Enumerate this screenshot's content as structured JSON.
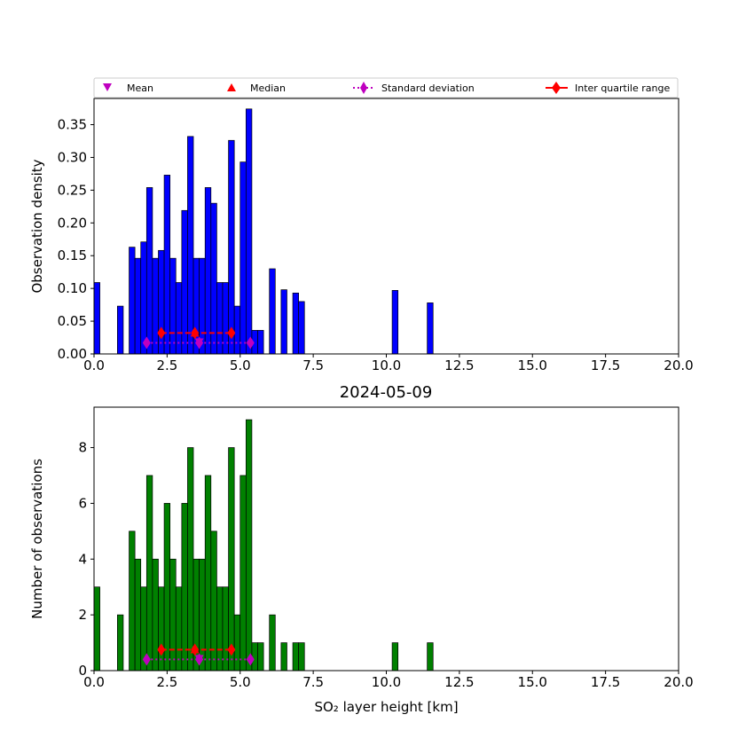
{
  "chart_data": [
    {
      "type": "bar",
      "title": "",
      "xlabel": "",
      "ylabel": "Observation density",
      "xlim": [
        0,
        20
      ],
      "ylim": [
        0,
        0.39
      ],
      "x_ticks": [
        "0.0",
        "2.5",
        "5.0",
        "7.5",
        "10.0",
        "12.5",
        "15.0",
        "17.5",
        "20.0"
      ],
      "y_ticks": [
        "0.00",
        "0.05",
        "0.10",
        "0.15",
        "0.20",
        "0.25",
        "0.30",
        "0.35"
      ],
      "bin_width": 0.2,
      "bar_color": "#0000ff",
      "legend": {
        "placement": "top, outside axes",
        "entries": [
          "Mean",
          "Median",
          "Standard deviation",
          "Inter quartile range"
        ]
      },
      "bins": [
        {
          "x": 0.0,
          "value": 0.109
        },
        {
          "x": 0.8,
          "value": 0.073
        },
        {
          "x": 1.2,
          "value": 0.163
        },
        {
          "x": 1.4,
          "value": 0.146
        },
        {
          "x": 1.6,
          "value": 0.171
        },
        {
          "x": 1.8,
          "value": 0.254
        },
        {
          "x": 2.0,
          "value": 0.146
        },
        {
          "x": 2.2,
          "value": 0.158
        },
        {
          "x": 2.4,
          "value": 0.273
        },
        {
          "x": 2.6,
          "value": 0.146
        },
        {
          "x": 2.8,
          "value": 0.109
        },
        {
          "x": 3.0,
          "value": 0.219
        },
        {
          "x": 3.2,
          "value": 0.332
        },
        {
          "x": 3.4,
          "value": 0.146
        },
        {
          "x": 3.6,
          "value": 0.146
        },
        {
          "x": 3.8,
          "value": 0.254
        },
        {
          "x": 4.0,
          "value": 0.23
        },
        {
          "x": 4.2,
          "value": 0.109
        },
        {
          "x": 4.4,
          "value": 0.109
        },
        {
          "x": 4.6,
          "value": 0.326
        },
        {
          "x": 4.8,
          "value": 0.073
        },
        {
          "x": 5.0,
          "value": 0.293
        },
        {
          "x": 5.2,
          "value": 0.374
        },
        {
          "x": 5.4,
          "value": 0.036
        },
        {
          "x": 5.6,
          "value": 0.036
        },
        {
          "x": 6.0,
          "value": 0.13
        },
        {
          "x": 6.4,
          "value": 0.098
        },
        {
          "x": 6.8,
          "value": 0.093
        },
        {
          "x": 7.0,
          "value": 0.08
        },
        {
          "x": 10.2,
          "value": 0.097
        },
        {
          "x": 11.4,
          "value": 0.078
        }
      ],
      "markers": {
        "median_iqr": {
          "y": 0.032,
          "q1": 2.3,
          "median": 3.45,
          "q3": 4.7
        },
        "mean_std": {
          "y": 0.017,
          "low": 1.8,
          "mean": 3.6,
          "high": 5.35
        }
      }
    },
    {
      "type": "bar",
      "title": "2024-05-09",
      "xlabel": "SO₂ layer height [km]",
      "ylabel": "Number of observations",
      "xlim": [
        0,
        20
      ],
      "ylim": [
        0,
        9.45
      ],
      "x_ticks": [
        "0.0",
        "2.5",
        "5.0",
        "7.5",
        "10.0",
        "12.5",
        "15.0",
        "17.5",
        "20.0"
      ],
      "y_ticks": [
        "0",
        "2",
        "4",
        "6",
        "8"
      ],
      "bin_width": 0.2,
      "bar_color": "#008000",
      "bins": [
        {
          "x": 0.0,
          "value": 3
        },
        {
          "x": 0.8,
          "value": 2
        },
        {
          "x": 1.2,
          "value": 5
        },
        {
          "x": 1.4,
          "value": 4
        },
        {
          "x": 1.6,
          "value": 3
        },
        {
          "x": 1.8,
          "value": 7
        },
        {
          "x": 2.0,
          "value": 4
        },
        {
          "x": 2.2,
          "value": 3
        },
        {
          "x": 2.4,
          "value": 6
        },
        {
          "x": 2.6,
          "value": 4
        },
        {
          "x": 2.8,
          "value": 3
        },
        {
          "x": 3.0,
          "value": 6
        },
        {
          "x": 3.2,
          "value": 8
        },
        {
          "x": 3.4,
          "value": 4
        },
        {
          "x": 3.6,
          "value": 4
        },
        {
          "x": 3.8,
          "value": 7
        },
        {
          "x": 4.0,
          "value": 5
        },
        {
          "x": 4.2,
          "value": 3
        },
        {
          "x": 4.4,
          "value": 3
        },
        {
          "x": 4.6,
          "value": 8
        },
        {
          "x": 4.8,
          "value": 2
        },
        {
          "x": 5.0,
          "value": 7
        },
        {
          "x": 5.2,
          "value": 9
        },
        {
          "x": 5.4,
          "value": 1
        },
        {
          "x": 5.6,
          "value": 1
        },
        {
          "x": 6.0,
          "value": 2
        },
        {
          "x": 6.4,
          "value": 1
        },
        {
          "x": 6.8,
          "value": 1
        },
        {
          "x": 7.0,
          "value": 1
        },
        {
          "x": 10.2,
          "value": 1
        },
        {
          "x": 11.4,
          "value": 1
        }
      ],
      "markers": {
        "median_iqr": {
          "y": 0.75,
          "q1": 2.3,
          "median": 3.45,
          "q3": 4.7
        },
        "mean_std": {
          "y": 0.4,
          "low": 1.8,
          "mean": 3.6,
          "high": 5.35
        }
      }
    }
  ],
  "colors": {
    "mean_std": "#bf00bf",
    "median_iqr": "#ff0000"
  }
}
